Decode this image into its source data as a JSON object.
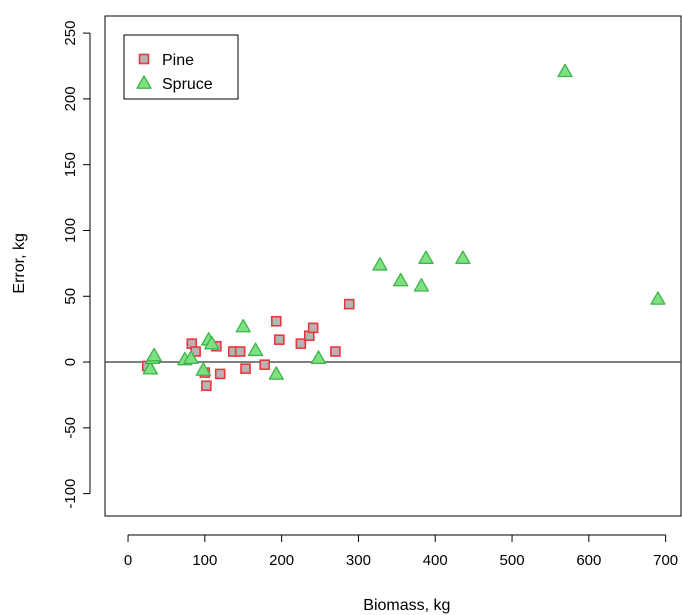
{
  "chart_data": {
    "type": "scatter",
    "title": "",
    "xlabel": "Biomass, kg",
    "ylabel": "Error, kg",
    "xlim": [
      -30,
      720
    ],
    "ylim": [
      -117,
      263
    ],
    "xticks": [
      0,
      100,
      200,
      300,
      400,
      500,
      600,
      700
    ],
    "yticks": [
      -100,
      -50,
      0,
      50,
      100,
      150,
      200,
      250
    ],
    "reference_line_y": 0,
    "grid": false,
    "legend_position": "top-left",
    "series": [
      {
        "name": "Pine",
        "marker": "square",
        "stroke_color": "#e8383d",
        "fill_color": "#b4b4b4",
        "points": [
          {
            "x": 25,
            "y": -3
          },
          {
            "x": 83,
            "y": 14
          },
          {
            "x": 88,
            "y": 8
          },
          {
            "x": 100,
            "y": -8
          },
          {
            "x": 102,
            "y": -18
          },
          {
            "x": 115,
            "y": 12
          },
          {
            "x": 120,
            "y": -9
          },
          {
            "x": 137,
            "y": 8
          },
          {
            "x": 146,
            "y": 8
          },
          {
            "x": 153,
            "y": -5
          },
          {
            "x": 178,
            "y": -2
          },
          {
            "x": 193,
            "y": 31
          },
          {
            "x": 197,
            "y": 17
          },
          {
            "x": 225,
            "y": 14
          },
          {
            "x": 236,
            "y": 20
          },
          {
            "x": 241,
            "y": 26
          },
          {
            "x": 270,
            "y": 8
          },
          {
            "x": 288,
            "y": 44
          }
        ]
      },
      {
        "name": "Spruce",
        "marker": "triangle",
        "stroke_color": "#3cb44b",
        "fill_color": "#7fe07f",
        "points": [
          {
            "x": 29,
            "y": -5
          },
          {
            "x": 32,
            "y": 3
          },
          {
            "x": 34,
            "y": 5
          },
          {
            "x": 74,
            "y": 2
          },
          {
            "x": 82,
            "y": 3
          },
          {
            "x": 98,
            "y": -6
          },
          {
            "x": 105,
            "y": 17
          },
          {
            "x": 109,
            "y": 14
          },
          {
            "x": 150,
            "y": 27
          },
          {
            "x": 166,
            "y": 9
          },
          {
            "x": 193,
            "y": -9
          },
          {
            "x": 248,
            "y": 3
          },
          {
            "x": 328,
            "y": 74
          },
          {
            "x": 355,
            "y": 62
          },
          {
            "x": 382,
            "y": 58
          },
          {
            "x": 388,
            "y": 79
          },
          {
            "x": 436,
            "y": 79
          },
          {
            "x": 569,
            "y": 221
          },
          {
            "x": 690,
            "y": 48
          }
        ]
      }
    ]
  }
}
